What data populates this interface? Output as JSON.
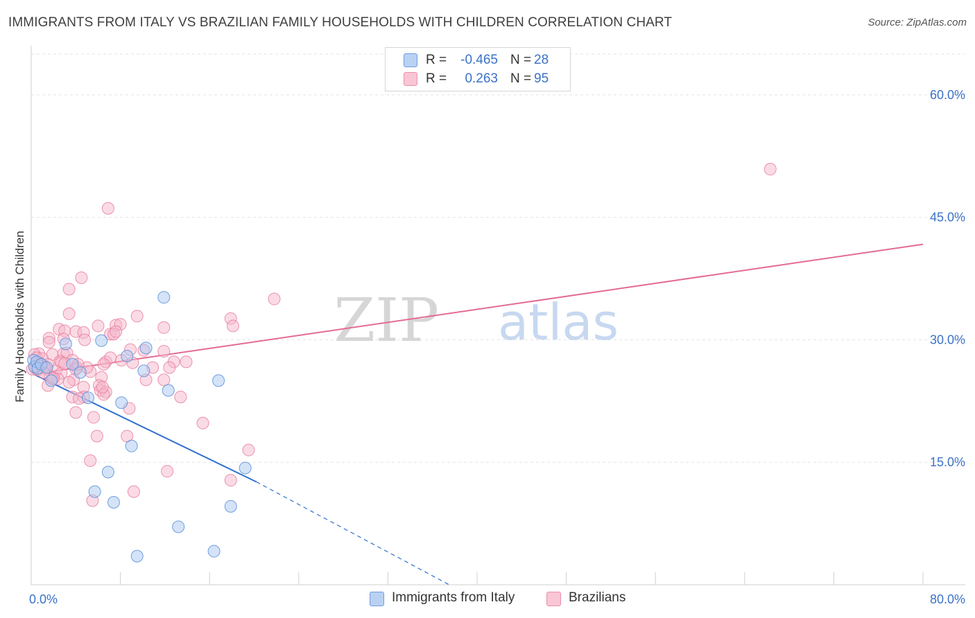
{
  "header": {
    "title": "IMMIGRANTS FROM ITALY VS BRAZILIAN FAMILY HOUSEHOLDS WITH CHILDREN CORRELATION CHART",
    "source": "Source: ZipAtlas.com"
  },
  "watermark": {
    "zip": "ZIP",
    "atlas": "atlas"
  },
  "legend_top": {
    "rows": [
      {
        "r_label": "R =",
        "r_value": "-0.465",
        "n_label": "N =",
        "n_value": "28"
      },
      {
        "r_label": "R =",
        "r_value": "0.263",
        "n_label": "N =",
        "n_value": "95"
      }
    ]
  },
  "legend_bottom": {
    "items": [
      {
        "label": "Immigrants from Italy"
      },
      {
        "label": "Brazilians"
      }
    ]
  },
  "colors": {
    "blue_fill": "#aac8f0",
    "blue_stroke": "#5b8fd8",
    "blue_line": "#2f6fd1",
    "pink_fill": "#f6b8cc",
    "pink_stroke": "#e8809f",
    "pink_line": "#e46a93",
    "grid": "#e3e3e3",
    "tick_label": "#3b72c8"
  },
  "chart_data": {
    "type": "scatter",
    "title": "IMMIGRANTS FROM ITALY VS BRAZILIAN FAMILY HOUSEHOLDS WITH CHILDREN CORRELATION CHART",
    "xlabel": "",
    "ylabel": "Family Households with Children",
    "xlim": [
      0,
      80
    ],
    "ylim": [
      0,
      65
    ],
    "x_tick_labels": [
      {
        "value": 0,
        "label": "0.0%"
      },
      {
        "value": 80,
        "label": "80.0%"
      }
    ],
    "y_ticks": [
      {
        "value": 15,
        "label": "15.0%"
      },
      {
        "value": 30,
        "label": "30.0%"
      },
      {
        "value": 45,
        "label": "45.0%"
      },
      {
        "value": 60,
        "label": "60.0%"
      }
    ],
    "x_minor_ticks": [
      0,
      8,
      16,
      24,
      32,
      40,
      48,
      56,
      64,
      72,
      80
    ],
    "series": [
      {
        "name": "Immigrants from Italy",
        "color": "blue",
        "trend": {
          "x0": 0.2,
          "y0": 25.8,
          "x1": 20.2,
          "y1": 12.6,
          "dash_to_x": 37.5,
          "dash_to_y": 0.0
        },
        "points": [
          [
            0.2,
            27.5
          ],
          [
            0.3,
            26.7
          ],
          [
            0.5,
            27.3
          ],
          [
            0.6,
            26.5
          ],
          [
            0.9,
            27.0
          ],
          [
            1.4,
            26.6
          ],
          [
            1.8,
            25.0
          ],
          [
            3.1,
            29.5
          ],
          [
            3.7,
            27.0
          ],
          [
            4.4,
            26.0
          ],
          [
            5.1,
            22.9
          ],
          [
            6.3,
            29.9
          ],
          [
            8.1,
            22.3
          ],
          [
            8.6,
            28.0
          ],
          [
            10.1,
            26.2
          ],
          [
            10.3,
            29.0
          ],
          [
            12.3,
            23.8
          ],
          [
            16.8,
            25.0
          ],
          [
            11.9,
            35.2
          ],
          [
            9.0,
            17.0
          ],
          [
            6.9,
            13.8
          ],
          [
            5.7,
            11.4
          ],
          [
            7.4,
            10.1
          ],
          [
            19.2,
            14.3
          ],
          [
            17.9,
            9.6
          ],
          [
            13.2,
            7.1
          ],
          [
            9.5,
            3.5
          ],
          [
            16.4,
            4.1
          ]
        ]
      },
      {
        "name": "Brazilians",
        "color": "pink",
        "trend": {
          "x0": 0.2,
          "y0": 25.8,
          "x1": 80.0,
          "y1": 41.7
        },
        "points": [
          [
            66.3,
            50.9
          ],
          [
            21.8,
            35.0
          ],
          [
            6.9,
            46.1
          ],
          [
            4.5,
            37.6
          ],
          [
            3.4,
            36.2
          ],
          [
            3.4,
            33.2
          ],
          [
            9.5,
            32.9
          ],
          [
            17.9,
            32.6
          ],
          [
            18.1,
            31.7
          ],
          [
            11.9,
            31.5
          ],
          [
            2.5,
            31.3
          ],
          [
            7.6,
            31.8
          ],
          [
            8.0,
            31.9
          ],
          [
            6.0,
            31.7
          ],
          [
            3.0,
            31.1
          ],
          [
            4.0,
            31.0
          ],
          [
            4.7,
            30.9
          ],
          [
            7.1,
            30.7
          ],
          [
            7.4,
            30.7
          ],
          [
            1.6,
            30.2
          ],
          [
            2.9,
            30.1
          ],
          [
            4.8,
            30.0
          ],
          [
            1.6,
            29.7
          ],
          [
            10.1,
            28.7
          ],
          [
            11.9,
            28.6
          ],
          [
            0.7,
            28.3
          ],
          [
            1.9,
            28.2
          ],
          [
            2.9,
            28.3
          ],
          [
            3.2,
            28.4
          ],
          [
            0.3,
            28.2
          ],
          [
            0.5,
            27.8
          ],
          [
            1.0,
            27.7
          ],
          [
            2.6,
            27.4
          ],
          [
            3.7,
            27.5
          ],
          [
            6.7,
            27.3
          ],
          [
            8.1,
            27.5
          ],
          [
            7.1,
            27.8
          ],
          [
            0.8,
            27.1
          ],
          [
            1.5,
            27.0
          ],
          [
            2.7,
            27.2
          ],
          [
            4.1,
            26.6
          ],
          [
            0.4,
            26.5
          ],
          [
            1.2,
            26.7
          ],
          [
            4.0,
            26.4
          ],
          [
            6.5,
            27.0
          ],
          [
            9.1,
            27.2
          ],
          [
            12.8,
            27.3
          ],
          [
            13.9,
            27.3
          ],
          [
            0.1,
            26.4
          ],
          [
            0.6,
            26.3
          ],
          [
            1.3,
            26.4
          ],
          [
            2.2,
            26.2
          ],
          [
            2.7,
            25.9
          ],
          [
            5.3,
            26.1
          ],
          [
            10.9,
            26.6
          ],
          [
            12.4,
            26.6
          ],
          [
            1.7,
            25.5
          ],
          [
            2.4,
            25.2
          ],
          [
            3.8,
            25.1
          ],
          [
            6.3,
            25.4
          ],
          [
            10.3,
            25.1
          ],
          [
            1.5,
            24.4
          ],
          [
            1.9,
            25.2
          ],
          [
            4.7,
            24.2
          ],
          [
            6.1,
            24.4
          ],
          [
            6.2,
            23.8
          ],
          [
            6.7,
            23.6
          ],
          [
            3.7,
            23.0
          ],
          [
            4.7,
            23.0
          ],
          [
            4.3,
            22.8
          ],
          [
            13.4,
            23.0
          ],
          [
            6.5,
            23.3
          ],
          [
            8.8,
            21.6
          ],
          [
            4.0,
            21.1
          ],
          [
            5.6,
            20.5
          ],
          [
            15.4,
            19.8
          ],
          [
            5.9,
            18.2
          ],
          [
            8.6,
            18.2
          ],
          [
            19.5,
            16.5
          ],
          [
            5.3,
            15.2
          ],
          [
            12.2,
            13.9
          ],
          [
            17.9,
            12.8
          ],
          [
            9.2,
            11.4
          ],
          [
            5.5,
            10.3
          ],
          [
            8.9,
            28.8
          ],
          [
            6.4,
            24.2
          ],
          [
            11.9,
            25.1
          ],
          [
            3.4,
            24.8
          ],
          [
            7.6,
            31.0
          ],
          [
            3.0,
            27.1
          ],
          [
            0.9,
            26.8
          ],
          [
            2.0,
            25.3
          ],
          [
            1.1,
            26.0
          ],
          [
            5.0,
            26.6
          ],
          [
            4.2,
            27.0
          ]
        ]
      }
    ]
  }
}
